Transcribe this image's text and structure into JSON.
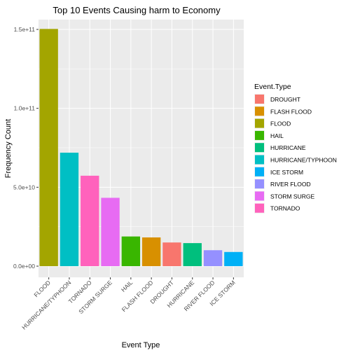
{
  "chart_data": {
    "type": "bar",
    "title": "Top 10 Events Causing harm to Economy",
    "xlabel": "Event Type",
    "ylabel": "Frequency Count",
    "ylim": [
      0,
      157000000000
    ],
    "yticks": [
      {
        "value": 0,
        "label": "0.0e+00"
      },
      {
        "value": 50000000000,
        "label": "5.0e+10"
      },
      {
        "value": 100000000000,
        "label": "1.0e+11"
      },
      {
        "value": 150000000000,
        "label": "1.5e+11"
      }
    ],
    "grid": true,
    "categories": [
      "FLOOD",
      "HURRICANE/TYPHOON",
      "TORNADO",
      "STORM SURGE",
      "HAIL",
      "FLASH FLOOD",
      "DROUGHT",
      "HURRICANE",
      "RIVER FLOOD",
      "ICE STORM"
    ],
    "values": [
      150300000000,
      71900000000,
      57300000000,
      43300000000,
      18800000000,
      18200000000,
      15000000000,
      14600000000,
      10100000000,
      8970000000
    ],
    "legend": {
      "title": "Event.Type",
      "placement": "right",
      "entries": [
        {
          "label": "DROUGHT",
          "color": "#F8766D"
        },
        {
          "label": "FLASH FLOOD",
          "color": "#D89000"
        },
        {
          "label": "FLOOD",
          "color": "#A3A500"
        },
        {
          "label": "HAIL",
          "color": "#39B600"
        },
        {
          "label": "HURRICANE",
          "color": "#00BF7D"
        },
        {
          "label": "HURRICANE/TYPHOON",
          "color": "#00BFC4"
        },
        {
          "label": "ICE STORM",
          "color": "#00B0F6"
        },
        {
          "label": "RIVER FLOOD",
          "color": "#9590FF"
        },
        {
          "label": "STORM SURGE",
          "color": "#E76BF3"
        },
        {
          "label": "TORNADO",
          "color": "#FF62BC"
        }
      ]
    },
    "colors": {
      "panel_background": "#EBEBEB",
      "grid": "#FFFFFF"
    }
  }
}
